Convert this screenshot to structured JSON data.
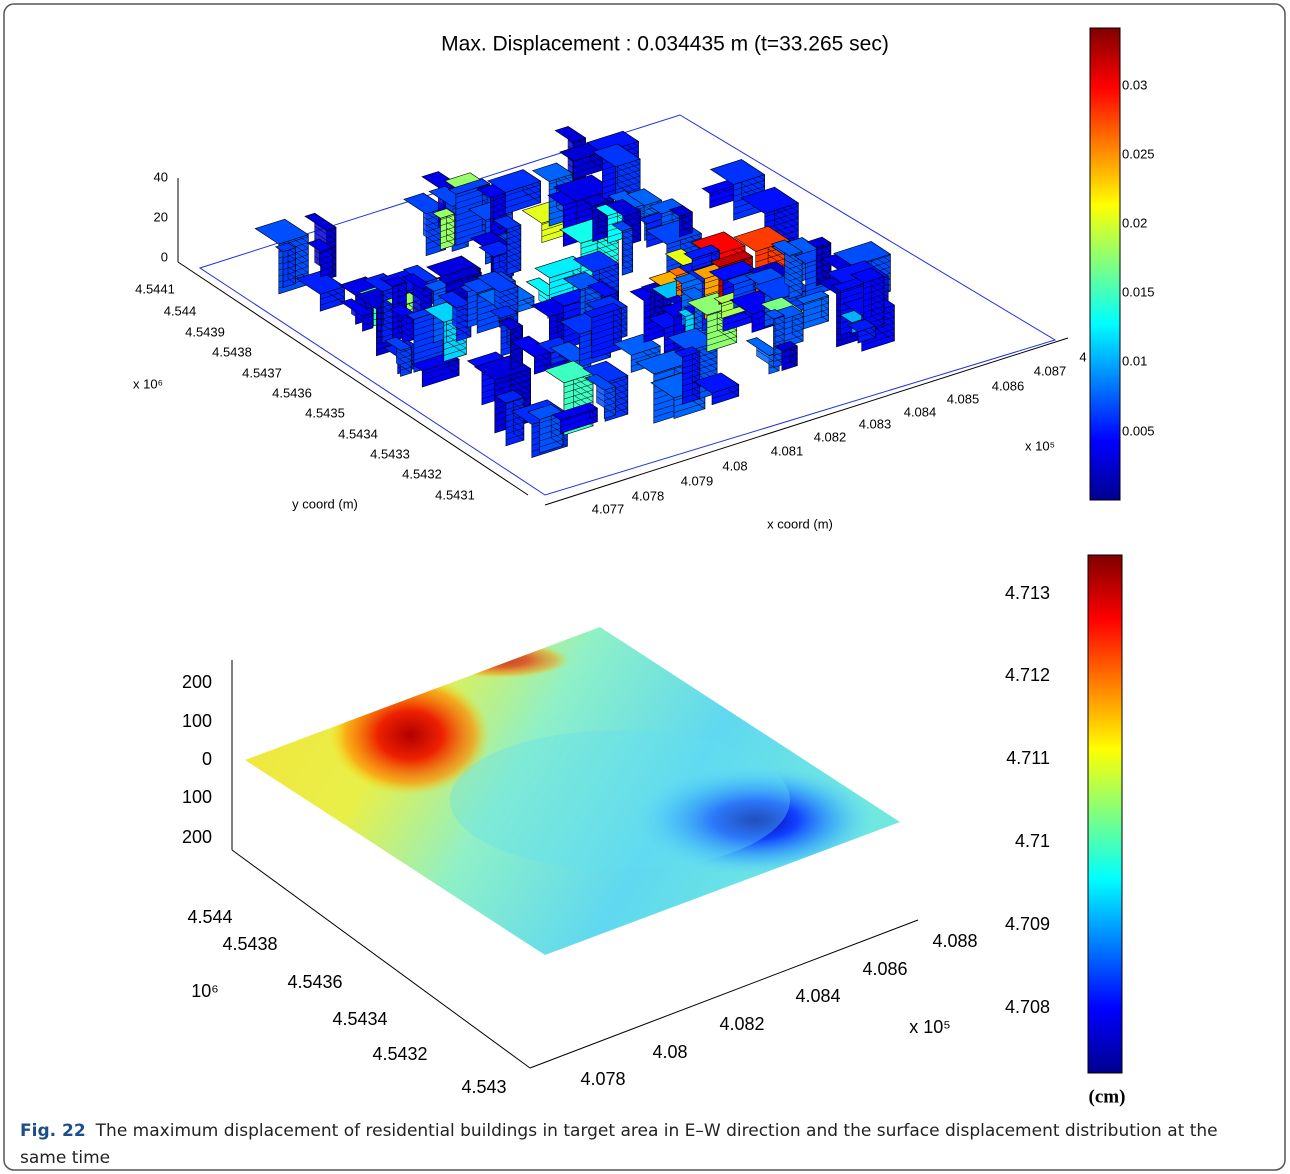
{
  "figure": {
    "top": {
      "title": "Max. Displacement : 0.034435 m (t=33.265 sec)",
      "zticks": [
        "40",
        "20",
        "0"
      ],
      "yticks": [
        "4.5441",
        "4.544",
        "4.5439",
        "4.5438",
        "4.5437",
        "4.5436",
        "4.5435",
        "4.5434",
        "4.5433",
        "4.5432",
        "4.5431"
      ],
      "y_exponent": "x 10⁶",
      "y_label": "y coord (m)",
      "xticks": [
        "4.077",
        "4.078",
        "4.079",
        "4.08",
        "4.081",
        "4.082",
        "4.083",
        "4.084",
        "4.085",
        "4.086",
        "4.087",
        "4"
      ],
      "x_exponent": "x 10⁵",
      "x_label": "x coord (m)",
      "colorbar_ticks": [
        "0.03",
        "0.025",
        "0.02",
        "0.015",
        "0.01",
        "0.005"
      ]
    },
    "bottom": {
      "zticks": [
        "200",
        "100",
        "0",
        "100",
        "200"
      ],
      "yticks": [
        "4.544",
        "4.5438",
        "4.5436",
        "4.5434",
        "4.5432",
        "4.543"
      ],
      "y_exponent": "10⁶",
      "xticks": [
        "4.078",
        "4.08",
        "4.082",
        "4.084",
        "4.086",
        "4.088"
      ],
      "x_exponent": "x 10⁵",
      "colorbar_ticks": [
        "4.713",
        "4.712",
        "4.711",
        "4.71",
        "4.709",
        "4.708"
      ],
      "colorbar_unit": "(cm)"
    },
    "caption": {
      "label": "Fig. 22",
      "text": "The maximum displacement of residential buildings in target area in E–W direction and the surface displacement distribution at the same time"
    }
  }
}
